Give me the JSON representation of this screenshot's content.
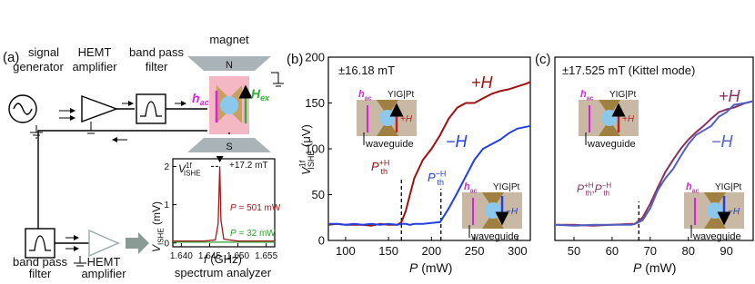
{
  "diagram": {
    "panel": "(a)",
    "signal": [
      "signal",
      "generator"
    ],
    "hemt1": [
      "HEMT",
      "amplifier"
    ],
    "filter1": [
      "band pass",
      "filter"
    ],
    "magnet": "magnet",
    "north": "N",
    "south": "S",
    "hac": {
      "main": "h",
      "sub": "ac"
    },
    "hex": {
      "main": "H",
      "sub": "ex"
    },
    "filter2": [
      "band pass",
      "filter"
    ],
    "hemt2": [
      "HEMT",
      "amplifier"
    ],
    "analyzer": "spectrum analyzer"
  },
  "chart_data": [
    {
      "type": "line",
      "xlabel": {
        "main": "f",
        "unit": " (GHz)"
      },
      "ylabel": {
        "main": "V",
        "sub": "ISHE",
        "unit": " (mV)"
      },
      "x": [
        1.6385,
        1.644,
        1.646,
        1.6465,
        1.6468,
        1.647,
        1.6475,
        1.65,
        1.6565
      ],
      "series": [
        {
          "name": {
            "main": "P",
            "unit": " = 501 mW"
          },
          "color": "#a01818",
          "values": [
            0.05,
            0.05,
            0.08,
            0.5,
            2.0,
            0.6,
            0.1,
            0.05,
            0.05
          ]
        },
        {
          "name": {
            "main": "P",
            "unit": " = 32 mW"
          },
          "color": "#2ca02c",
          "values": [
            0.02,
            0.02,
            0.02,
            0.02,
            0.02,
            0.02,
            0.02,
            0.02,
            0.02
          ]
        }
      ],
      "xlim": [
        1.6385,
        1.6565
      ],
      "xticks": [
        {
          "value": 1.64,
          "label": "1.640"
        },
        1.645,
        {
          "value": 1.65,
          "label": "1.650"
        },
        1.655
      ],
      "ylim": [
        -0.1,
        2.2
      ],
      "yticks": [
        0,
        1,
        2
      ],
      "field": "+17.2 mT",
      "peak_label": {
        "main": "V",
        "sub": "ISHE",
        "sup": "1f"
      }
    },
    {
      "type": "line",
      "panel": "(b)",
      "field": "±16.18 mT",
      "xlabel": {
        "main": "P",
        "unit": " (mW)"
      },
      "ylabel": {
        "main": "V",
        "sub": "ISHE",
        "sup": "1f",
        "unit": " (μV)"
      },
      "x": [
        80,
        90,
        100,
        110,
        120,
        130,
        140,
        150,
        160,
        165,
        170,
        175,
        180,
        190,
        200,
        210,
        220,
        230,
        240,
        250,
        260,
        270,
        280,
        290,
        300,
        310,
        315
      ],
      "series": [
        {
          "name": "+H",
          "color": "#a01010",
          "values": [
            17,
            18,
            17,
            17,
            17,
            16,
            18,
            17,
            17,
            20,
            32,
            50,
            68,
            88,
            100,
            115,
            133,
            145,
            150,
            150,
            155,
            160,
            163,
            165,
            168,
            171,
            173
          ]
        },
        {
          "name": "−H",
          "color": "#2040e0",
          "values": [
            18,
            18,
            17,
            18,
            17,
            18,
            17,
            18,
            17,
            18,
            18,
            17,
            18,
            18,
            19,
            20,
            35,
            52,
            70,
            88,
            100,
            105,
            110,
            117,
            122,
            124,
            125
          ]
        }
      ],
      "xlim": [
        80,
        315
      ],
      "xticks": [
        100,
        150,
        200,
        250,
        300
      ],
      "ylim": [
        0,
        200
      ],
      "yticks": [
        0,
        50,
        100,
        150,
        200
      ],
      "thresholds": [
        {
          "value": 165,
          "label": {
            "main": "P",
            "sub": "th",
            "sup": "+H"
          }
        },
        {
          "value": 211,
          "label": {
            "main": "P",
            "sub": "th",
            "sup": "−H"
          }
        }
      ],
      "insets": [
        {
          "h": {
            "main": "h",
            "sub": "ac"
          },
          "sample": "YIG|Pt",
          "field": "+H",
          "guide": "waveguide"
        },
        {
          "h": {
            "main": "h",
            "sub": "ac"
          },
          "sample": "YIG|Pt",
          "field": "−H",
          "guide": "waveguide"
        }
      ]
    },
    {
      "type": "line",
      "panel": "(c)",
      "field": "±17.525 mT (Kittel mode)",
      "xlabel": {
        "main": "P",
        "unit": " (mW)"
      },
      "x": [
        45,
        50,
        55,
        60,
        65,
        66,
        68,
        70,
        72,
        74,
        76,
        78,
        80,
        82,
        84,
        86,
        88,
        90,
        92,
        95,
        97
      ],
      "series": [
        {
          "name": "+H",
          "color": "#8a3060",
          "values": [
            17,
            17,
            16,
            17,
            18,
            18,
            25,
            40,
            58,
            75,
            88,
            100,
            110,
            118,
            125,
            133,
            140,
            143,
            145,
            150,
            152
          ]
        },
        {
          "name": "−H",
          "color": "#5060c0",
          "values": [
            17,
            16,
            17,
            17,
            17,
            18,
            22,
            35,
            55,
            68,
            78,
            92,
            105,
            115,
            120,
            125,
            135,
            140,
            148,
            150,
            152
          ]
        }
      ],
      "xlim": [
        45,
        97
      ],
      "xticks": [
        50,
        60,
        70,
        80,
        90
      ],
      "ylim": [
        0,
        200
      ],
      "thresholds": [
        {
          "value": 67,
          "label": {
            "main": "P",
            "sub": "th",
            "sup": "+H",
            "sep": ",",
            "main2": "P",
            "sub2": "th",
            "sup2": "−H"
          }
        }
      ],
      "insets": [
        {
          "h": {
            "main": "h",
            "sub": "ac"
          },
          "sample": "YIG|Pt",
          "field": "+H",
          "guide": "waveguide"
        },
        {
          "h": {
            "main": "h",
            "sub": "ac"
          },
          "sample": "YIG|Pt",
          "field": "−H",
          "guide": "waveguide"
        }
      ]
    }
  ]
}
